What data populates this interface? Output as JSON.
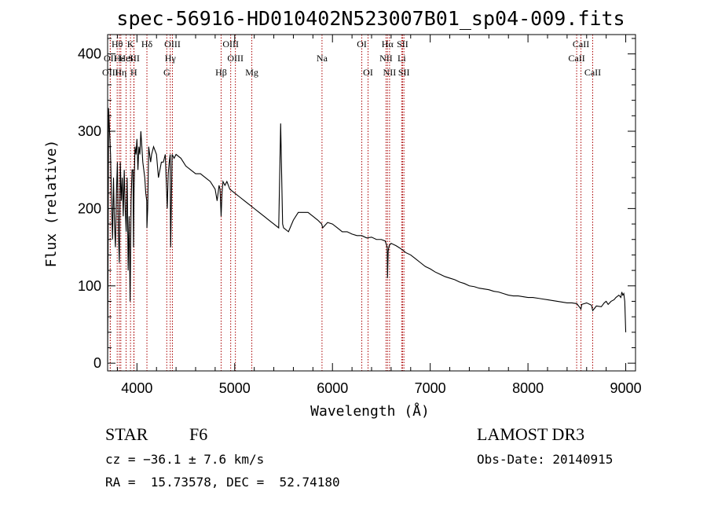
{
  "chart_data": {
    "type": "line",
    "title": "spec-56916-HD010402N523007B01_sp04-009.fits",
    "xlabel": "Wavelength (Å)",
    "ylabel": "Flux (relative)",
    "xlim": [
      3700,
      9100
    ],
    "ylim": [
      -10,
      425
    ],
    "xticks": [
      4000,
      5000,
      6000,
      7000,
      8000,
      9000
    ],
    "yticks": [
      0,
      100,
      200,
      300,
      400
    ],
    "line_color": "#000000",
    "marker_color": "#aa0000",
    "series": [
      {
        "name": "spectrum",
        "x": [
          3700,
          3705,
          3710,
          3720,
          3730,
          3740,
          3750,
          3760,
          3770,
          3780,
          3790,
          3800,
          3810,
          3820,
          3830,
          3840,
          3850,
          3860,
          3870,
          3880,
          3890,
          3900,
          3910,
          3920,
          3930,
          3935,
          3940,
          3950,
          3960,
          3965,
          3970,
          3980,
          3990,
          4000,
          4010,
          4020,
          4030,
          4040,
          4050,
          4060,
          4070,
          4080,
          4090,
          4100,
          4102,
          4110,
          4120,
          4130,
          4140,
          4150,
          4170,
          4200,
          4220,
          4250,
          4270,
          4290,
          4310,
          4320,
          4330,
          4340,
          4342,
          4345,
          4360,
          4380,
          4400,
          4450,
          4500,
          4550,
          4600,
          4650,
          4700,
          4750,
          4800,
          4820,
          4840,
          4850,
          4861,
          4870,
          4880,
          4900,
          4920,
          4950,
          5000,
          5050,
          5100,
          5150,
          5200,
          5250,
          5300,
          5350,
          5400,
          5450,
          5470,
          5490,
          5500,
          5550,
          5600,
          5650,
          5700,
          5750,
          5800,
          5850,
          5890,
          5900,
          5950,
          6000,
          6050,
          6100,
          6150,
          6200,
          6250,
          6300,
          6350,
          6400,
          6450,
          6500,
          6540,
          6560,
          6563,
          6570,
          6580,
          6600,
          6650,
          6700,
          6750,
          6800,
          6850,
          6900,
          6950,
          7000,
          7050,
          7100,
          7150,
          7200,
          7250,
          7300,
          7350,
          7400,
          7450,
          7500,
          7550,
          7600,
          7650,
          7700,
          7750,
          7800,
          7850,
          7900,
          7950,
          8000,
          8050,
          8100,
          8150,
          8200,
          8250,
          8300,
          8350,
          8400,
          8450,
          8500,
          8542,
          8550,
          8600,
          8650,
          8662,
          8700,
          8750,
          8780,
          8800,
          8820,
          8850,
          8880,
          8900,
          8930,
          8950,
          8960,
          8970,
          8980,
          8990,
          9000
        ],
        "y": [
          2,
          150,
          330,
          300,
          270,
          210,
          160,
          240,
          180,
          150,
          220,
          260,
          170,
          130,
          260,
          210,
          240,
          190,
          250,
          200,
          170,
          240,
          120,
          190,
          80,
          140,
          210,
          250,
          250,
          150,
          220,
          280,
          270,
          290,
          250,
          280,
          270,
          300,
          280,
          260,
          250,
          240,
          220,
          210,
          175,
          200,
          280,
          270,
          260,
          270,
          280,
          270,
          240,
          260,
          260,
          270,
          200,
          245,
          260,
          270,
          200,
          150,
          270,
          265,
          270,
          265,
          255,
          250,
          245,
          245,
          240,
          235,
          225,
          210,
          230,
          225,
          190,
          220,
          235,
          230,
          235,
          225,
          220,
          215,
          210,
          205,
          200,
          195,
          190,
          185,
          180,
          175,
          310,
          180,
          175,
          170,
          185,
          195,
          195,
          195,
          190,
          185,
          180,
          175,
          182,
          180,
          175,
          170,
          170,
          167,
          165,
          165,
          162,
          163,
          160,
          160,
          158,
          150,
          110,
          145,
          152,
          155,
          152,
          148,
          143,
          140,
          135,
          130,
          125,
          122,
          118,
          115,
          112,
          110,
          108,
          105,
          103,
          100,
          99,
          97,
          96,
          95,
          93,
          92,
          90,
          88,
          87,
          87,
          86,
          85,
          85,
          84,
          83,
          82,
          81,
          80,
          79,
          78,
          78,
          77,
          70,
          76,
          78,
          75,
          68,
          74,
          73,
          78,
          80,
          76,
          80,
          82,
          85,
          88,
          85,
          92,
          88,
          90,
          80,
          40
        ]
      }
    ],
    "spectral_lines": [
      {
        "label": "Hθ",
        "wavelength": 3798,
        "row": 1
      },
      {
        "label": "OII",
        "wavelength": 3727,
        "row": 2
      },
      {
        "label": "OIII",
        "wavelength": 3727,
        "row": 3
      },
      {
        "label": "Hε",
        "wavelength": 3820,
        "row": 2
      },
      {
        "label": "Hη",
        "wavelength": 3835,
        "row": 3
      },
      {
        "label": "K",
        "wavelength": 3934,
        "row": 1
      },
      {
        "label": "HeI",
        "wavelength": 3889,
        "row": 2
      },
      {
        "label": "SII",
        "wavelength": 3970,
        "row": 2
      },
      {
        "label": "H",
        "wavelength": 3968,
        "row": 3
      },
      {
        "label": "Hδ",
        "wavelength": 4102,
        "row": 1
      },
      {
        "label": "OIII",
        "wavelength": 4363,
        "row": 1
      },
      {
        "label": "Hγ",
        "wavelength": 4341,
        "row": 2
      },
      {
        "label": "G",
        "wavelength": 4305,
        "row": 3
      },
      {
        "label": "OIII",
        "wavelength": 4959,
        "row": 1
      },
      {
        "label": "OIII",
        "wavelength": 5007,
        "row": 2
      },
      {
        "label": "Hβ",
        "wavelength": 4861,
        "row": 3
      },
      {
        "label": "Mg",
        "wavelength": 5175,
        "row": 3
      },
      {
        "label": "Na",
        "wavelength": 5893,
        "row": 2
      },
      {
        "label": "OI",
        "wavelength": 6300,
        "row": 1
      },
      {
        "label": "OI",
        "wavelength": 6364,
        "row": 3
      },
      {
        "label": "Hα",
        "wavelength": 6563,
        "row": 1
      },
      {
        "label": "SII",
        "wavelength": 6717,
        "row": 1
      },
      {
        "label": "NII",
        "wavelength": 6548,
        "row": 2
      },
      {
        "label": "Li",
        "wavelength": 6708,
        "row": 2
      },
      {
        "label": "NII",
        "wavelength": 6584,
        "row": 3
      },
      {
        "label": "SII",
        "wavelength": 6731,
        "row": 3
      },
      {
        "label": "CaII",
        "wavelength": 8542,
        "row": 1
      },
      {
        "label": "CaII",
        "wavelength": 8498,
        "row": 2
      },
      {
        "label": "CaII",
        "wavelength": 8662,
        "row": 3
      }
    ]
  },
  "info": {
    "class": "STAR",
    "subclass": "F6",
    "survey": "LAMOST DR3",
    "cz": "cz = −36.1 ± 7.6 km/s",
    "obs_date": "Obs-Date: 20140915",
    "coords": "RA =  15.73578, DEC =  52.74180"
  }
}
